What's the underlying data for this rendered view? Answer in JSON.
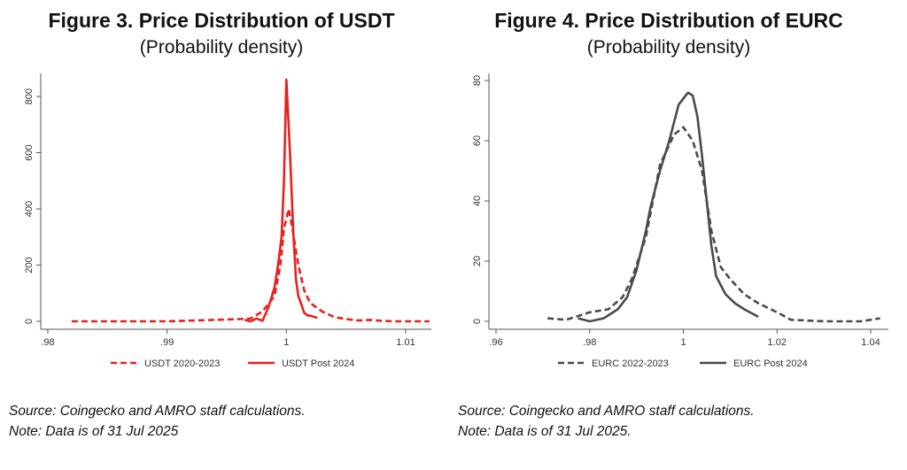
{
  "chart_data": [
    {
      "type": "line",
      "title": "Figure 3. Price Distribution of USDT",
      "subtitle": "(Probability density)",
      "xlabel": "",
      "ylabel": "",
      "xlim": [
        0.98,
        1.012
      ],
      "ylim": [
        0,
        860
      ],
      "xticks": [
        0.98,
        0.99,
        1.0,
        1.01
      ],
      "xtick_labels": [
        ".98",
        ".99",
        "1",
        "1.01"
      ],
      "yticks": [
        0,
        200,
        400,
        600,
        800
      ],
      "ytick_labels": [
        "0",
        "200",
        "400",
        "600",
        "800"
      ],
      "legend_position": "bottom",
      "color": "#e8211d",
      "series": [
        {
          "name": "USDT 2020-2023",
          "style": "dashed",
          "x": [
            0.982,
            0.99,
            0.994,
            0.996,
            0.997,
            0.998,
            0.999,
            0.9995,
            0.9998,
            1.0002,
            1.0005,
            1.001,
            1.0015,
            1.002,
            1.003,
            1.004,
            1.005,
            1.006,
            1.007,
            1.008,
            1.009,
            1.012
          ],
          "y": [
            0,
            0,
            5,
            8,
            10,
            35,
            90,
            200,
            330,
            400,
            330,
            200,
            110,
            65,
            35,
            15,
            8,
            3,
            5,
            2,
            0,
            0
          ]
        },
        {
          "name": "USDT Post 2024",
          "style": "solid",
          "x": [
            0.9965,
            0.997,
            0.9975,
            0.998,
            0.9985,
            0.999,
            0.9993,
            0.9996,
            0.9998,
            1.0,
            1.0003,
            1.0006,
            1.0008,
            1.001,
            1.0013,
            1.0015,
            1.0018,
            1.002,
            1.0026
          ],
          "y": [
            5,
            0,
            10,
            2,
            50,
            120,
            200,
            300,
            500,
            860,
            600,
            300,
            150,
            90,
            55,
            30,
            20,
            20,
            12
          ]
        }
      ],
      "source": "Source: Coingecko and AMRO staff calculations.",
      "note": "Note: Data is of 31 Jul 2025"
    },
    {
      "type": "line",
      "title": "Figure 4. Price Distribution of EURC",
      "subtitle": "(Probability density)",
      "xlabel": "",
      "ylabel": "",
      "xlim": [
        0.96,
        1.042
      ],
      "ylim": [
        0,
        80
      ],
      "xticks": [
        0.96,
        0.98,
        1.0,
        1.02,
        1.04
      ],
      "xtick_labels": [
        ".96",
        ".98",
        "1",
        "1.02",
        "1.04"
      ],
      "yticks": [
        0,
        20,
        40,
        60,
        80
      ],
      "ytick_labels": [
        "0",
        "20",
        "40",
        "60",
        "80"
      ],
      "legend_position": "bottom",
      "color": "#4a4a4a",
      "series": [
        {
          "name": "EURC 2022-2023",
          "style": "dashed",
          "x": [
            0.971,
            0.975,
            0.978,
            0.98,
            0.984,
            0.987,
            0.989,
            0.992,
            0.995,
            0.998,
            1.0,
            1.002,
            1.004,
            1.006,
            1.008,
            1.01,
            1.013,
            1.016,
            1.02,
            1.023,
            1.03,
            1.038,
            1.042
          ],
          "y": [
            1,
            0.5,
            2,
            3,
            4,
            8,
            14,
            28,
            52,
            62,
            64.5,
            60,
            50,
            30,
            18,
            14,
            9,
            6,
            3,
            0.5,
            0,
            0,
            1
          ]
        },
        {
          "name": "EURC Post 2024",
          "style": "solid",
          "x": [
            0.9775,
            0.98,
            0.983,
            0.986,
            0.988,
            0.99,
            0.992,
            0.993,
            0.995,
            0.997,
            0.999,
            1.001,
            1.002,
            1.003,
            1.004,
            1.005,
            1.006,
            1.007,
            1.009,
            1.011,
            1.013,
            1.016
          ],
          "y": [
            1,
            0,
            1,
            4,
            8,
            17,
            30,
            38,
            50,
            60,
            72,
            76,
            75,
            68,
            55,
            40,
            25,
            15,
            9,
            6,
            4,
            1.5
          ]
        }
      ],
      "source": "Source: Coingecko and AMRO staff calculations.",
      "note": "Note:  Data is of 31 Jul 2025."
    }
  ]
}
